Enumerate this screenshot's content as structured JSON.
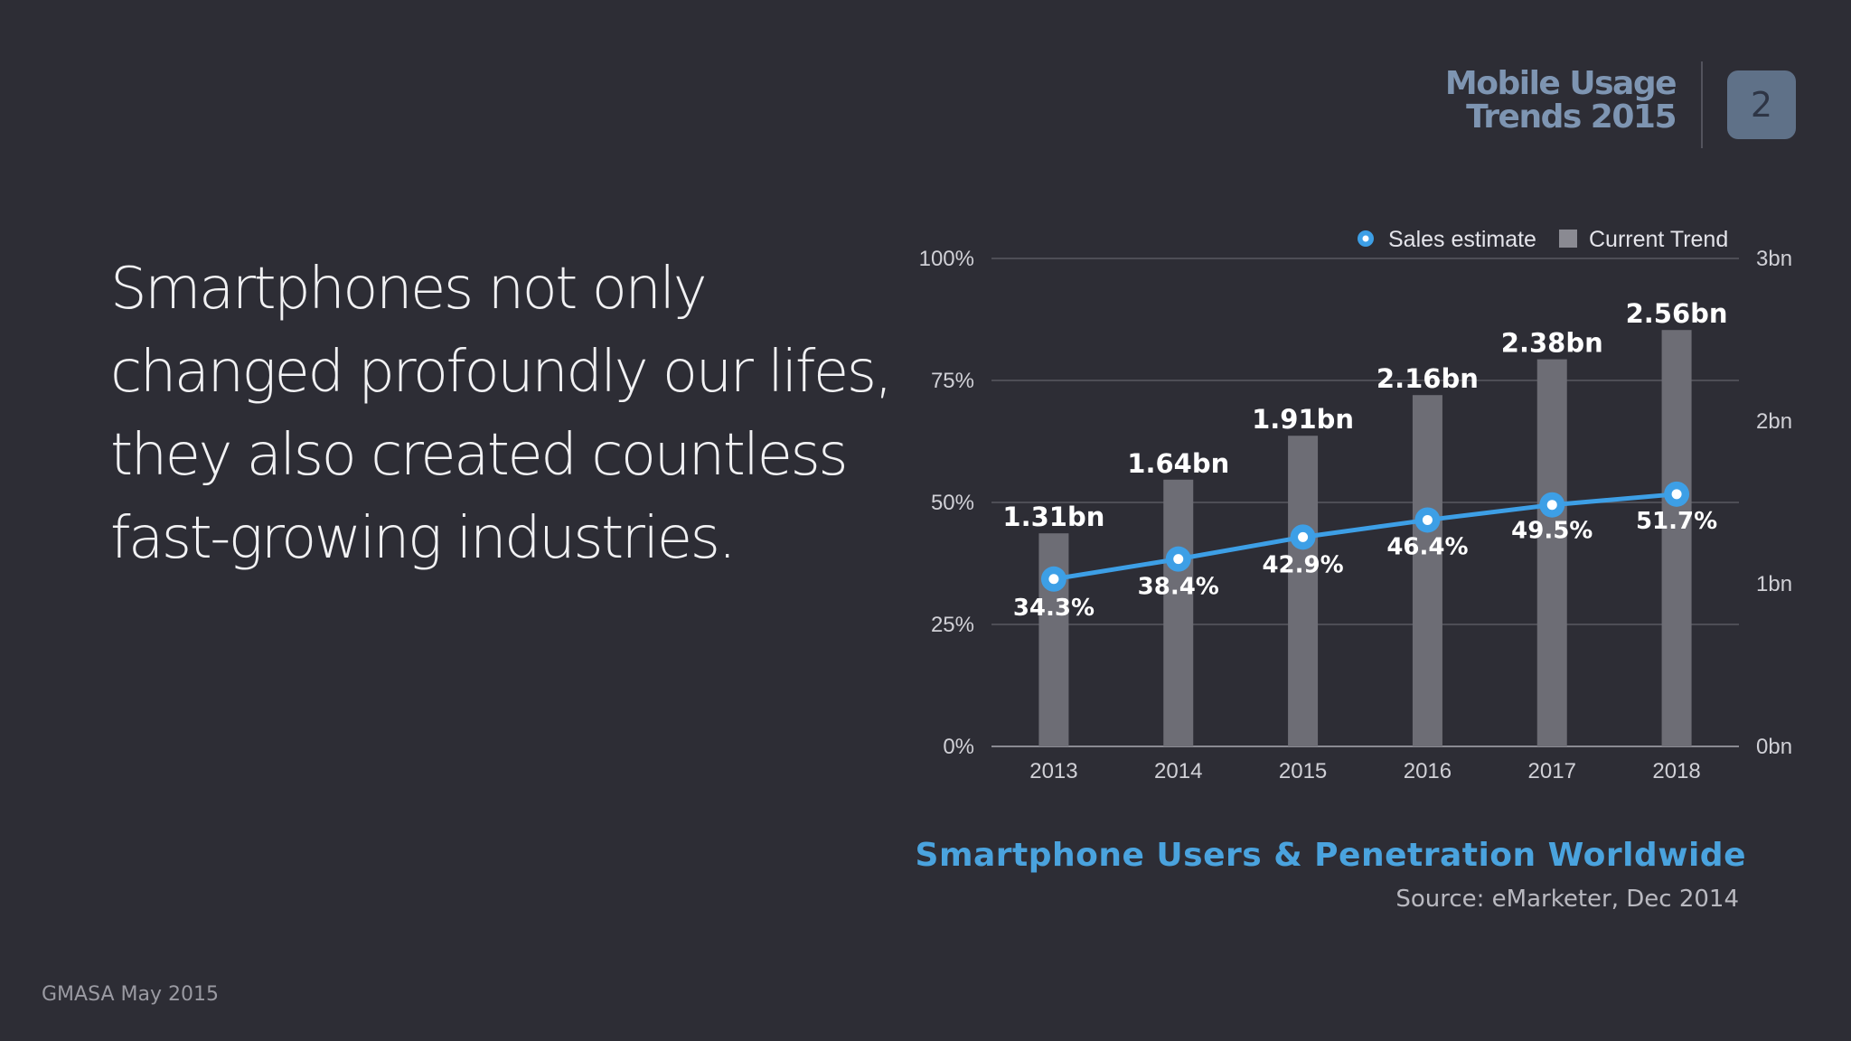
{
  "header": {
    "brand_line1": "Mobile Usage",
    "brand_line2": "Trends 2015",
    "page_number": "2"
  },
  "headline": {
    "lines": [
      "Smartphones not only",
      "changed profoundly our lifes,",
      "they also created countless",
      "fast-growing industries."
    ]
  },
  "footer": {
    "text": "GMASA May 2015"
  },
  "colors": {
    "background": "#2d2d35",
    "bar": "#6d6d75",
    "line": "#3d9fe6",
    "title": "#4aa3de",
    "grid": "#5a5a62"
  },
  "chart_data": {
    "type": "bar",
    "title": "Smartphone Users & Penetration Worldwide",
    "source": "Source: eMarketer, Dec 2014",
    "categories": [
      "2013",
      "2014",
      "2015",
      "2016",
      "2017",
      "2018"
    ],
    "series": [
      {
        "name": "Current Trend",
        "type": "bar",
        "axis": "right",
        "values": [
          1.31,
          1.64,
          1.91,
          2.16,
          2.38,
          2.56
        ],
        "labels": [
          "1.31bn",
          "1.64bn",
          "1.91bn",
          "2.16bn",
          "2.38bn",
          "2.56bn"
        ]
      },
      {
        "name": "Sales estimate",
        "type": "line",
        "axis": "left",
        "values": [
          34.3,
          38.4,
          42.9,
          46.4,
          49.5,
          51.7
        ],
        "labels": [
          "34.3%",
          "38.4%",
          "42.9%",
          "46.4%",
          "49.5%",
          "51.7%"
        ]
      }
    ],
    "y_left": {
      "ylim": [
        0,
        100
      ],
      "ticks": [
        "0%",
        "25%",
        "50%",
        "75%",
        "100%"
      ]
    },
    "y_right": {
      "ylim": [
        0,
        3
      ],
      "ticks": [
        "0bn",
        "1bn",
        "2bn",
        "3bn"
      ]
    },
    "legend": {
      "position": "top-right",
      "entries": [
        "Sales estimate",
        "Current Trend"
      ]
    },
    "grid": true
  }
}
